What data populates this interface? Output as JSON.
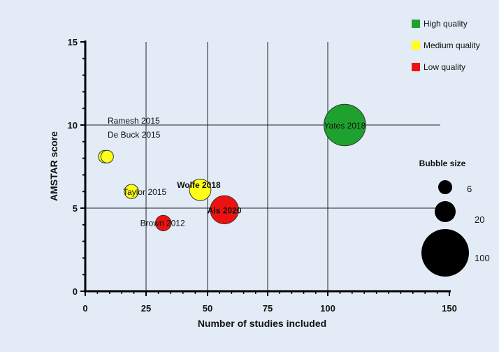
{
  "chart_data": {
    "type": "scatter",
    "subtype": "bubble",
    "xlabel": "Number of studies included",
    "ylabel": "AMSTAR score",
    "xlim": [
      0,
      150
    ],
    "ylim": [
      0,
      15
    ],
    "x_ticks": [
      "0",
      "25",
      "50",
      "75",
      "100",
      "150"
    ],
    "x_tick_values": [
      0,
      25,
      50,
      75,
      100,
      150
    ],
    "y_ticks": [
      "0",
      "5",
      "10",
      "15"
    ],
    "y_tick_values": [
      0,
      5,
      10,
      15
    ],
    "grid": true,
    "colors": {
      "high": "#1fa12f",
      "medium": "#ffff1a",
      "low": "#ee1111"
    },
    "legend": [
      {
        "key": "high",
        "label": "High quality"
      },
      {
        "key": "medium",
        "label": "Medium quality"
      },
      {
        "key": "low",
        "label": "Low quality"
      }
    ],
    "bubbles": [
      {
        "label": "Yates 2018",
        "x": 107,
        "y": 10,
        "size": 100,
        "quality": "high"
      },
      {
        "label": "Als 2020",
        "x": 57,
        "y": 4.9,
        "size": 40,
        "quality": "low"
      },
      {
        "label": "Wolfe 2018",
        "x": 47,
        "y": 6.1,
        "size": 20,
        "quality": "medium"
      },
      {
        "label": "Brown 2012",
        "x": 32,
        "y": 4.1,
        "size": 8,
        "quality": "low"
      },
      {
        "label": "Taylor 2015",
        "x": 19,
        "y": 6,
        "size": 6,
        "quality": "medium"
      },
      {
        "label": "",
        "x": 8,
        "y": 8.1,
        "size": 4,
        "quality": "medium"
      },
      {
        "label": "",
        "x": 9,
        "y": 8.1,
        "size": 4,
        "quality": "medium"
      }
    ],
    "annotations": [
      "Ramesh 2015",
      "De Buck 2015"
    ],
    "size_legend": {
      "title": "Bubble size",
      "entries": [
        {
          "label": "6",
          "size": 6
        },
        {
          "label": "20",
          "size": 20
        },
        {
          "label": "100",
          "size": 100
        }
      ]
    }
  }
}
